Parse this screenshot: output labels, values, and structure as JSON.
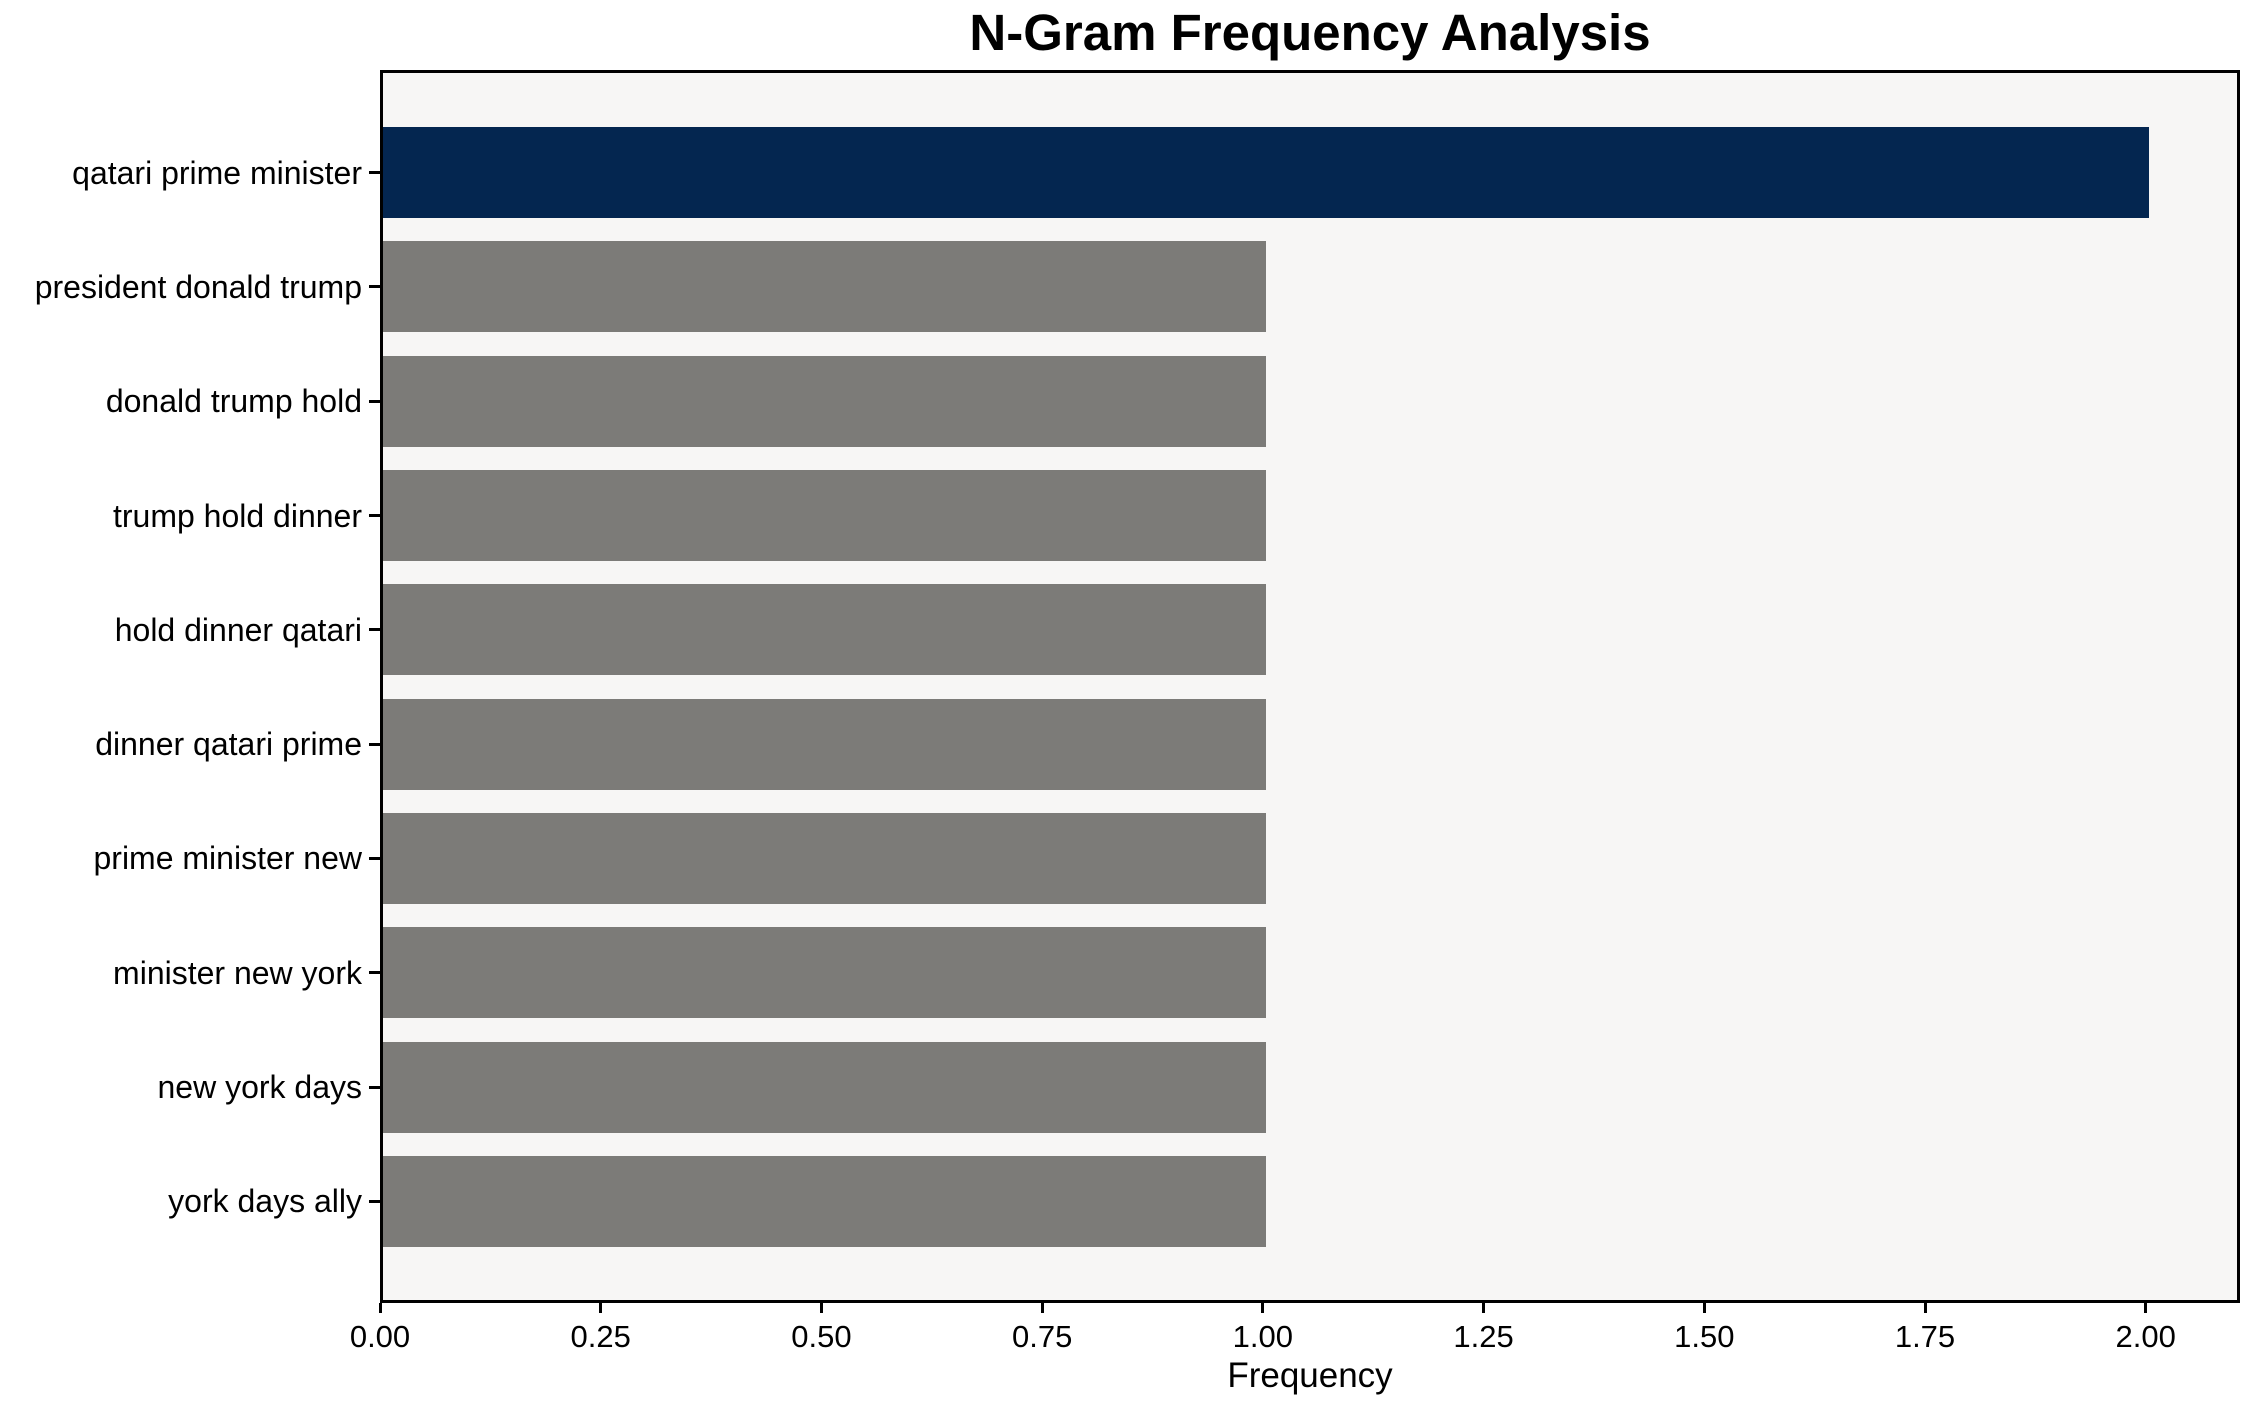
{
  "chart_data": {
    "type": "bar",
    "orientation": "horizontal",
    "title": "N-Gram Frequency Analysis",
    "xlabel": "Frequency",
    "ylabel": "",
    "categories": [
      "qatari prime minister",
      "president donald trump",
      "donald trump hold",
      "trump hold dinner",
      "hold dinner qatari",
      "dinner qatari prime",
      "prime minister new",
      "minister new york",
      "new york days",
      "york days ally"
    ],
    "values": [
      2,
      1,
      1,
      1,
      1,
      1,
      1,
      1,
      1,
      1
    ],
    "bar_colors": [
      "#042650",
      "#7C7B78",
      "#7C7B78",
      "#7C7B78",
      "#7C7B78",
      "#7C7B78",
      "#7C7B78",
      "#7C7B78",
      "#7C7B78",
      "#7C7B78"
    ],
    "xlim": [
      0,
      2.1
    ],
    "xticks": [
      {
        "value": 0,
        "label": "0.00"
      },
      {
        "value": 0.25,
        "label": "0.25"
      },
      {
        "value": 0.5,
        "label": "0.50"
      },
      {
        "value": 0.75,
        "label": "0.75"
      },
      {
        "value": 1.0,
        "label": "1.00"
      },
      {
        "value": 1.25,
        "label": "1.25"
      },
      {
        "value": 1.5,
        "label": "1.50"
      },
      {
        "value": 1.75,
        "label": "1.75"
      },
      {
        "value": 2.0,
        "label": "2.00"
      }
    ],
    "grid": false,
    "legend": null,
    "colors": {
      "highlight_bar": "#042650",
      "default_bar": "#7C7B78",
      "plot_background": "#F7F6F5",
      "figure_background": "#FFFFFF",
      "axis": "#000000",
      "text": "#000000"
    }
  }
}
